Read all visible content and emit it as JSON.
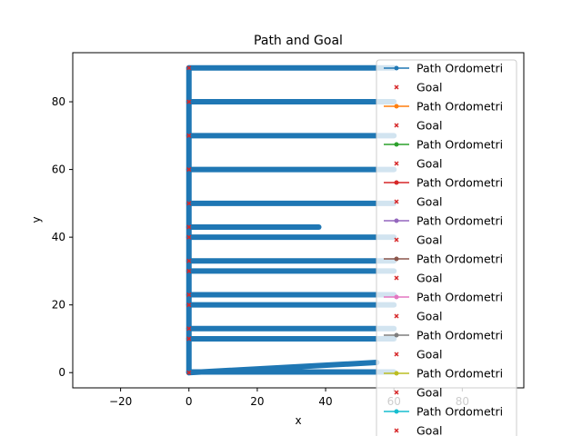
{
  "chart_data": {
    "type": "line",
    "title": "Path and Goal",
    "xlabel": "x",
    "ylabel": "y",
    "xlim": [
      -34,
      98
    ],
    "ylim": [
      -4.5,
      94.5
    ],
    "xticks": [
      -20,
      0,
      20,
      40,
      60,
      80
    ],
    "yticks": [
      0,
      20,
      40,
      60,
      80
    ],
    "grid": false,
    "legend_placement": "top-right",
    "series": [
      {
        "name": "Path Ordometri",
        "color": "#1f77b4",
        "marker": "dot",
        "segments": [
          [
            [
              0,
              0
            ],
            [
              0,
              90
            ]
          ],
          [
            [
              0,
              0
            ],
            [
              55,
              3
            ]
          ],
          [
            [
              0,
              0.2
            ],
            [
              60,
              0.2
            ]
          ],
          [
            [
              0,
              10
            ],
            [
              60,
              10
            ]
          ],
          [
            [
              0,
              13
            ],
            [
              60,
              13
            ]
          ],
          [
            [
              0,
              20
            ],
            [
              60,
              20
            ]
          ],
          [
            [
              0,
              23
            ],
            [
              60,
              23
            ]
          ],
          [
            [
              0,
              30
            ],
            [
              60,
              30
            ]
          ],
          [
            [
              0,
              33
            ],
            [
              60,
              33
            ]
          ],
          [
            [
              0,
              40
            ],
            [
              60,
              40
            ]
          ],
          [
            [
              0,
              43
            ],
            [
              38,
              43
            ]
          ],
          [
            [
              0,
              50
            ],
            [
              60,
              50
            ]
          ],
          [
            [
              0,
              60
            ],
            [
              60,
              60
            ]
          ],
          [
            [
              0,
              70
            ],
            [
              60,
              70
            ]
          ],
          [
            [
              0,
              80
            ],
            [
              60,
              80
            ]
          ],
          [
            [
              0,
              90
            ],
            [
              60,
              90
            ]
          ]
        ]
      }
    ],
    "goals": {
      "name": "Goal",
      "color": "#d62728",
      "marker": "x",
      "points": [
        [
          0,
          0
        ],
        [
          0,
          10
        ],
        [
          0,
          13
        ],
        [
          0,
          20
        ],
        [
          0,
          23
        ],
        [
          0,
          30
        ],
        [
          0,
          33
        ],
        [
          0,
          40
        ],
        [
          0,
          43
        ],
        [
          0,
          50
        ],
        [
          0,
          60
        ],
        [
          0,
          70
        ],
        [
          0,
          80
        ],
        [
          0,
          90
        ]
      ]
    },
    "legend": [
      {
        "label": "Path Ordometri",
        "color": "#1f77b4",
        "marker": "line-dot"
      },
      {
        "label": "Goal",
        "color": "#d62728",
        "marker": "x"
      },
      {
        "label": "Path Ordometri",
        "color": "#ff7f0e",
        "marker": "line-dot"
      },
      {
        "label": "Goal",
        "color": "#d62728",
        "marker": "x"
      },
      {
        "label": "Path Ordometri",
        "color": "#2ca02c",
        "marker": "line-dot"
      },
      {
        "label": "Goal",
        "color": "#d62728",
        "marker": "x"
      },
      {
        "label": "Path Ordometri",
        "color": "#d62728",
        "marker": "line-dot"
      },
      {
        "label": "Goal",
        "color": "#d62728",
        "marker": "x"
      },
      {
        "label": "Path Ordometri",
        "color": "#9467bd",
        "marker": "line-dot"
      },
      {
        "label": "Goal",
        "color": "#d62728",
        "marker": "x"
      },
      {
        "label": "Path Ordometri",
        "color": "#8c564b",
        "marker": "line-dot"
      },
      {
        "label": "Goal",
        "color": "#d62728",
        "marker": "x"
      },
      {
        "label": "Path Ordometri",
        "color": "#e377c2",
        "marker": "line-dot"
      },
      {
        "label": "Goal",
        "color": "#d62728",
        "marker": "x"
      },
      {
        "label": "Path Ordometri",
        "color": "#7f7f7f",
        "marker": "line-dot"
      },
      {
        "label": "Goal",
        "color": "#d62728",
        "marker": "x"
      },
      {
        "label": "Path Ordometri",
        "color": "#bcbd22",
        "marker": "line-dot"
      },
      {
        "label": "Goal",
        "color": "#d62728",
        "marker": "x"
      },
      {
        "label": "Path Ordometri",
        "color": "#17becf",
        "marker": "line-dot"
      },
      {
        "label": "Goal",
        "color": "#d62728",
        "marker": "x"
      }
    ]
  }
}
